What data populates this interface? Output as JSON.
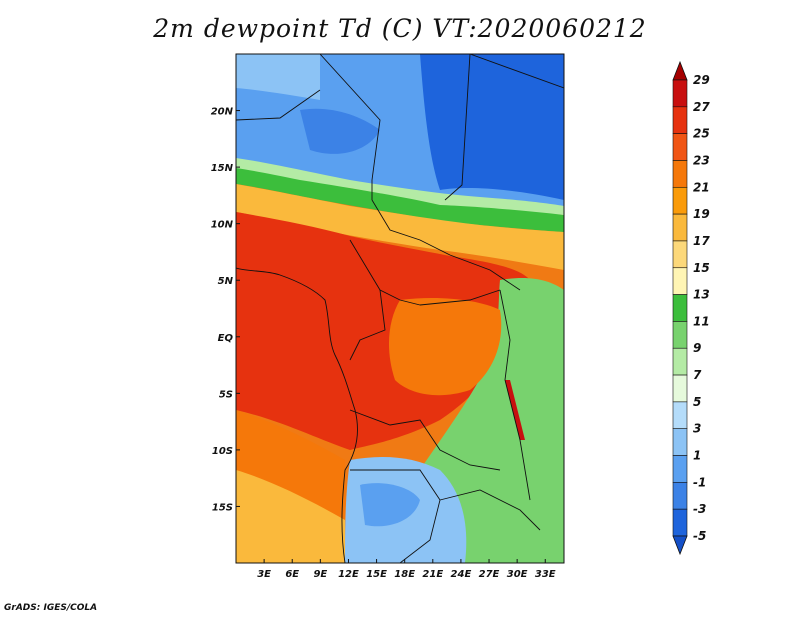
{
  "title": "2m dewpoint Td (C) VT:2020060212",
  "footer": "GrADS: IGES/COLA",
  "map": {
    "lat_labels": [
      "20N",
      "15N",
      "10N",
      "5N",
      "EQ",
      "5S",
      "10S",
      "15S"
    ],
    "lon_labels": [
      "3E",
      "6E",
      "9E",
      "12E",
      "15E",
      "18E",
      "21E",
      "24E",
      "27E",
      "30E",
      "33E"
    ],
    "lat_values": [
      20,
      15,
      10,
      5,
      0,
      -5,
      -10,
      -15
    ],
    "lon_values": [
      3,
      6,
      9,
      12,
      15,
      18,
      21,
      24,
      27,
      30,
      33
    ],
    "lon_range": [
      0,
      35
    ],
    "lat_range": [
      -20,
      25
    ]
  },
  "colorbar": {
    "labels": [
      "29",
      "27",
      "25",
      "23",
      "21",
      "19",
      "17",
      "15",
      "13",
      "11",
      "9",
      "7",
      "5",
      "3",
      "1",
      "-1",
      "-3",
      "-5"
    ],
    "colors": [
      "#a50000",
      "#c80f0f",
      "#e6320f",
      "#f05514",
      "#f5780a",
      "#fa9b0a",
      "#fab93c",
      "#fcd87a",
      "#fff5b4",
      "#3cbe3c",
      "#78d26e",
      "#b4eba5",
      "#e6fadc",
      "#b4dcfa",
      "#8cc3f5",
      "#5aa0f0",
      "#3c82e6",
      "#1e64dc",
      "#1450c8"
    ]
  }
}
